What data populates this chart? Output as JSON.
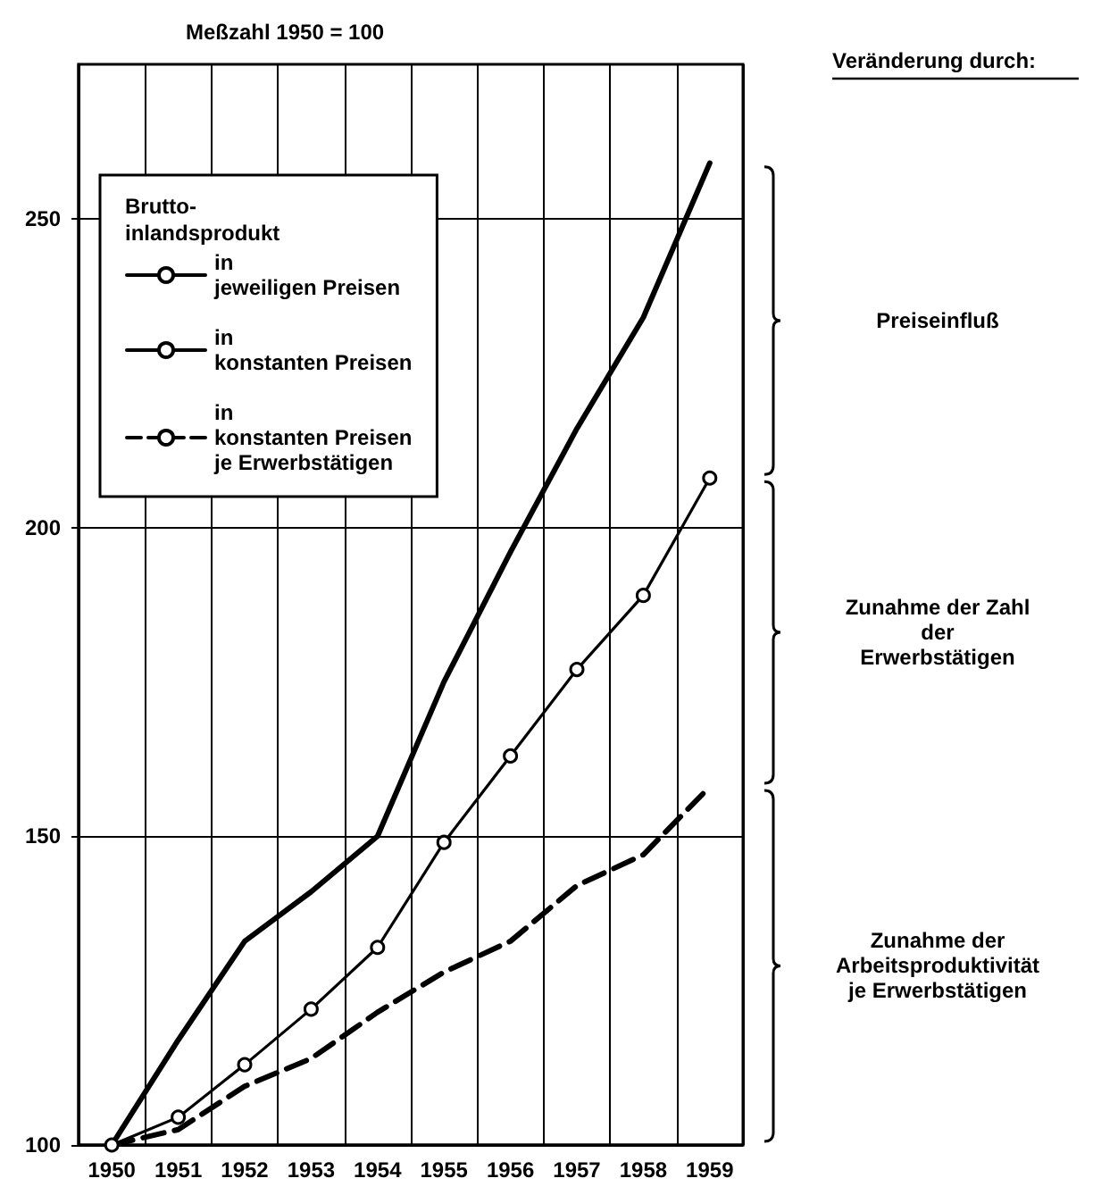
{
  "chart_data": {
    "type": "line",
    "ylabel": "Meßzahl 1950 = 100",
    "legend_title": "Brutto-\ninlandsprodukt",
    "legend": "top left",
    "grid": true,
    "categories": [
      "1950",
      "1951",
      "1952",
      "1953",
      "1954",
      "1955",
      "1956",
      "1957",
      "1958",
      "1959"
    ],
    "ylim": [
      100,
      275
    ],
    "yticks": [
      100,
      150,
      200,
      250
    ],
    "series": [
      {
        "name": "in\njeweiligen Preisen",
        "color": "#000000",
        "line_style": "solid",
        "marker": "none",
        "values": [
          100,
          117,
          133,
          141,
          150,
          175,
          196,
          216,
          234,
          259
        ]
      },
      {
        "name": "in\nkonstanten Preisen",
        "color": "#000000",
        "line_style": "solid",
        "marker": "circle",
        "values": [
          100,
          104.5,
          113,
          122,
          132,
          149,
          163,
          177,
          189,
          208
        ]
      },
      {
        "name": "in\nkonstanten Preisen\nje Erwerbstätigen",
        "color": "#000000",
        "line_style": "dashed",
        "marker": "none",
        "values": [
          100,
          102.5,
          109.5,
          114,
          121.5,
          128,
          133,
          142,
          147,
          158
        ]
      }
    ],
    "annotations": [
      "Veränderung durch:",
      "Preiseinfluß",
      "Zunahme der Zahl\nder\nErwerbstätigen",
      "Zunahme der\nArbeitsproduktivität\nje Erwerbstätigen"
    ]
  }
}
